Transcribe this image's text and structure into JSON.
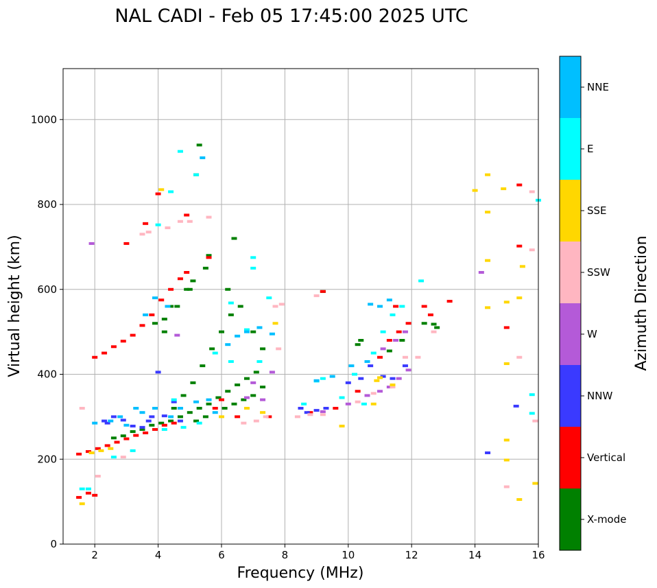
{
  "chart_data": {
    "type": "scatter",
    "title": "NAL CADI - Feb 05 17:45:00 2025 UTC",
    "xlabel": "Frequency (MHz)",
    "ylabel": "Virtual height (km)",
    "xlim": [
      1,
      16
    ],
    "ylim": [
      0,
      1120
    ],
    "xticks": [
      2,
      4,
      6,
      8,
      10,
      12,
      14,
      16
    ],
    "yticks": [
      0,
      200,
      400,
      600,
      800,
      1000
    ],
    "grid": true,
    "colorbar": {
      "title": "Azimuth Direction",
      "categories": [
        {
          "name": "X-mode",
          "color": "#008000"
        },
        {
          "name": "Vertical",
          "color": "#ff0000"
        },
        {
          "name": "NNW",
          "color": "#3a3aff"
        },
        {
          "name": "W",
          "color": "#b45ad8"
        },
        {
          "name": "SSW",
          "color": "#ffb6c1"
        },
        {
          "name": "SSE",
          "color": "#ffd700"
        },
        {
          "name": "E",
          "color": "#00ffff"
        },
        {
          "name": "NNE",
          "color": "#00bfff"
        }
      ]
    },
    "series": [
      {
        "name": "X-mode",
        "points": [
          [
            2.6,
            250
          ],
          [
            2.9,
            255
          ],
          [
            3.2,
            265
          ],
          [
            3.5,
            270
          ],
          [
            3.8,
            280
          ],
          [
            4.1,
            285
          ],
          [
            4.4,
            290
          ],
          [
            4.7,
            300
          ],
          [
            5.0,
            310
          ],
          [
            5.3,
            320
          ],
          [
            5.6,
            330
          ],
          [
            5.9,
            345
          ],
          [
            6.2,
            360
          ],
          [
            6.5,
            375
          ],
          [
            6.8,
            390
          ],
          [
            7.1,
            405
          ],
          [
            4.5,
            320
          ],
          [
            4.8,
            350
          ],
          [
            5.1,
            380
          ],
          [
            5.4,
            420
          ],
          [
            5.7,
            460
          ],
          [
            6.0,
            500
          ],
          [
            6.3,
            540
          ],
          [
            4.2,
            500
          ],
          [
            4.6,
            560
          ],
          [
            5.0,
            600
          ],
          [
            5.5,
            650
          ],
          [
            6.4,
            720
          ],
          [
            5.3,
            940
          ],
          [
            5.2,
            870
          ],
          [
            9.2,
            595
          ],
          [
            10.3,
            470
          ],
          [
            10.4,
            480
          ],
          [
            11.3,
            455
          ],
          [
            11.7,
            480
          ],
          [
            12.4,
            520
          ],
          [
            12.7,
            518
          ],
          [
            12.8,
            510
          ],
          [
            3.9,
            520
          ],
          [
            4.2,
            530
          ],
          [
            4.4,
            560
          ],
          [
            5.2,
            290
          ],
          [
            5.5,
            300
          ],
          [
            6.1,
            320
          ],
          [
            6.4,
            330
          ],
          [
            6.7,
            340
          ],
          [
            7.0,
            350
          ],
          [
            7.3,
            370
          ],
          [
            4.9,
            600
          ],
          [
            5.1,
            620
          ],
          [
            5.6,
            680
          ],
          [
            6.2,
            600
          ],
          [
            6.6,
            560
          ],
          [
            7.0,
            500
          ],
          [
            7.3,
            460
          ]
        ]
      },
      {
        "name": "Vertical",
        "points": [
          [
            1.5,
            212
          ],
          [
            1.8,
            218
          ],
          [
            2.1,
            225
          ],
          [
            2.4,
            232
          ],
          [
            2.7,
            240
          ],
          [
            3.0,
            248
          ],
          [
            3.3,
            256
          ],
          [
            3.6,
            262
          ],
          [
            3.9,
            270
          ],
          [
            4.2,
            280
          ],
          [
            4.5,
            285
          ],
          [
            2.0,
            440
          ],
          [
            2.3,
            450
          ],
          [
            2.6,
            465
          ],
          [
            2.9,
            478
          ],
          [
            3.2,
            492
          ],
          [
            3.5,
            515
          ],
          [
            3.8,
            540
          ],
          [
            4.1,
            575
          ],
          [
            4.4,
            600
          ],
          [
            4.7,
            625
          ],
          [
            4.9,
            640
          ],
          [
            1.5,
            110
          ],
          [
            1.8,
            120
          ],
          [
            2.0,
            115
          ],
          [
            4.0,
            825
          ],
          [
            4.9,
            775
          ],
          [
            3.6,
            755
          ],
          [
            5.6,
            675
          ],
          [
            3.0,
            708
          ],
          [
            9.2,
            595
          ],
          [
            11.5,
            560
          ],
          [
            12.4,
            560
          ],
          [
            12.6,
            540
          ],
          [
            13.2,
            572
          ],
          [
            15.0,
            510
          ],
          [
            15.4,
            702
          ],
          [
            15.4,
            846
          ],
          [
            11.0,
            440
          ],
          [
            11.3,
            480
          ],
          [
            11.6,
            500
          ],
          [
            11.9,
            520
          ],
          [
            5.8,
            320
          ],
          [
            6.0,
            340
          ],
          [
            6.5,
            300
          ],
          [
            7.5,
            300
          ],
          [
            8.8,
            310
          ],
          [
            9.6,
            320
          ],
          [
            10.3,
            360
          ]
        ]
      },
      {
        "name": "NNW",
        "points": [
          [
            2.3,
            290
          ],
          [
            2.6,
            300
          ],
          [
            2.9,
            292
          ],
          [
            3.2,
            278
          ],
          [
            3.5,
            275
          ],
          [
            3.8,
            300
          ],
          [
            4.2,
            302
          ],
          [
            4.5,
            335
          ],
          [
            4.0,
            405
          ],
          [
            8.5,
            320
          ],
          [
            8.7,
            310
          ],
          [
            9.0,
            315
          ],
          [
            9.3,
            320
          ],
          [
            10.0,
            380
          ],
          [
            10.4,
            390
          ],
          [
            10.7,
            420
          ],
          [
            11.1,
            395
          ],
          [
            11.4,
            390
          ],
          [
            11.8,
            420
          ],
          [
            15.3,
            325
          ],
          [
            14.4,
            215
          ],
          [
            2.4,
            285
          ],
          [
            3.7,
            290
          ],
          [
            4.7,
            290
          ]
        ]
      },
      {
        "name": "W",
        "points": [
          [
            1.9,
            708
          ],
          [
            6.8,
            345
          ],
          [
            7.0,
            380
          ],
          [
            7.6,
            405
          ],
          [
            9.2,
            312
          ],
          [
            10.0,
            330
          ],
          [
            10.6,
            350
          ],
          [
            11.0,
            360
          ],
          [
            11.3,
            370
          ],
          [
            11.6,
            390
          ],
          [
            11.9,
            410
          ],
          [
            11.1,
            460
          ],
          [
            11.5,
            480
          ],
          [
            11.8,
            500
          ],
          [
            14.2,
            640
          ],
          [
            4.6,
            492
          ],
          [
            7.3,
            340
          ]
        ]
      },
      {
        "name": "SSW",
        "points": [
          [
            3.5,
            730
          ],
          [
            3.7,
            735
          ],
          [
            4.3,
            745
          ],
          [
            4.7,
            760
          ],
          [
            5.0,
            760
          ],
          [
            5.6,
            770
          ],
          [
            7.7,
            560
          ],
          [
            7.9,
            565
          ],
          [
            7.8,
            460
          ],
          [
            9.0,
            585
          ],
          [
            8.4,
            300
          ],
          [
            8.8,
            305
          ],
          [
            9.2,
            305
          ],
          [
            10.3,
            335
          ],
          [
            10.8,
            355
          ],
          [
            11.4,
            370
          ],
          [
            11.8,
            440
          ],
          [
            12.2,
            440
          ],
          [
            12.7,
            500
          ],
          [
            15.0,
            135
          ],
          [
            15.4,
            440
          ],
          [
            15.8,
            830
          ],
          [
            15.8,
            693
          ],
          [
            15.9,
            290
          ],
          [
            7.1,
            290
          ],
          [
            6.7,
            285
          ],
          [
            7.4,
            300
          ],
          [
            1.6,
            320
          ],
          [
            2.1,
            160
          ],
          [
            2.9,
            205
          ]
        ]
      },
      {
        "name": "SSE",
        "points": [
          [
            1.6,
            95
          ],
          [
            1.9,
            215
          ],
          [
            2.2,
            220
          ],
          [
            2.5,
            225
          ],
          [
            7.7,
            520
          ],
          [
            9.8,
            278
          ],
          [
            10.8,
            330
          ],
          [
            10.9,
            385
          ],
          [
            11.0,
            392
          ],
          [
            11.4,
            375
          ],
          [
            14.0,
            833
          ],
          [
            14.4,
            870
          ],
          [
            14.4,
            668
          ],
          [
            14.4,
            557
          ],
          [
            14.4,
            782
          ],
          [
            14.9,
            837
          ],
          [
            15.5,
            654
          ],
          [
            15.4,
            580
          ],
          [
            15.0,
            570
          ],
          [
            15.0,
            425
          ],
          [
            15.0,
            245
          ],
          [
            15.0,
            198
          ],
          [
            15.4,
            105
          ],
          [
            15.9,
            143
          ],
          [
            6.0,
            300
          ],
          [
            6.8,
            320
          ],
          [
            7.3,
            310
          ],
          [
            4.1,
            835
          ]
        ]
      },
      {
        "name": "E",
        "points": [
          [
            1.6,
            130
          ],
          [
            1.8,
            130
          ],
          [
            2.6,
            205
          ],
          [
            3.2,
            220
          ],
          [
            4.2,
            270
          ],
          [
            4.8,
            275
          ],
          [
            5.3,
            285
          ],
          [
            4.5,
            340
          ],
          [
            4.7,
            925
          ],
          [
            4.4,
            830
          ],
          [
            5.2,
            870
          ],
          [
            6.3,
            568
          ],
          [
            6.8,
            505
          ],
          [
            7.2,
            430
          ],
          [
            7.0,
            675
          ],
          [
            7.0,
            650
          ],
          [
            7.5,
            580
          ],
          [
            8.6,
            330
          ],
          [
            9.0,
            384
          ],
          [
            9.2,
            390
          ],
          [
            9.8,
            345
          ],
          [
            10.2,
            400
          ],
          [
            10.5,
            330
          ],
          [
            10.8,
            450
          ],
          [
            11.1,
            500
          ],
          [
            11.4,
            540
          ],
          [
            11.7,
            560
          ],
          [
            12.3,
            620
          ],
          [
            16.0,
            810
          ],
          [
            15.8,
            352
          ],
          [
            15.8,
            308
          ],
          [
            6.3,
            430
          ],
          [
            5.8,
            450
          ],
          [
            4.0,
            752
          ]
        ]
      },
      {
        "name": "NNE",
        "points": [
          [
            2.0,
            285
          ],
          [
            2.5,
            290
          ],
          [
            3.0,
            280
          ],
          [
            3.5,
            310
          ],
          [
            3.9,
            320
          ],
          [
            4.4,
            300
          ],
          [
            4.7,
            320
          ],
          [
            5.2,
            335
          ],
          [
            5.6,
            340
          ],
          [
            5.8,
            310
          ],
          [
            6.2,
            470
          ],
          [
            6.5,
            490
          ],
          [
            6.8,
            500
          ],
          [
            7.2,
            510
          ],
          [
            7.6,
            495
          ],
          [
            3.6,
            540
          ],
          [
            3.9,
            580
          ],
          [
            5.4,
            910
          ],
          [
            10.7,
            565
          ],
          [
            11.0,
            560
          ],
          [
            11.3,
            575
          ],
          [
            9.5,
            395
          ],
          [
            9.0,
            385
          ],
          [
            10.1,
            420
          ],
          [
            10.6,
            430
          ],
          [
            2.8,
            300
          ],
          [
            3.3,
            320
          ],
          [
            4.3,
            560
          ]
        ]
      }
    ]
  }
}
